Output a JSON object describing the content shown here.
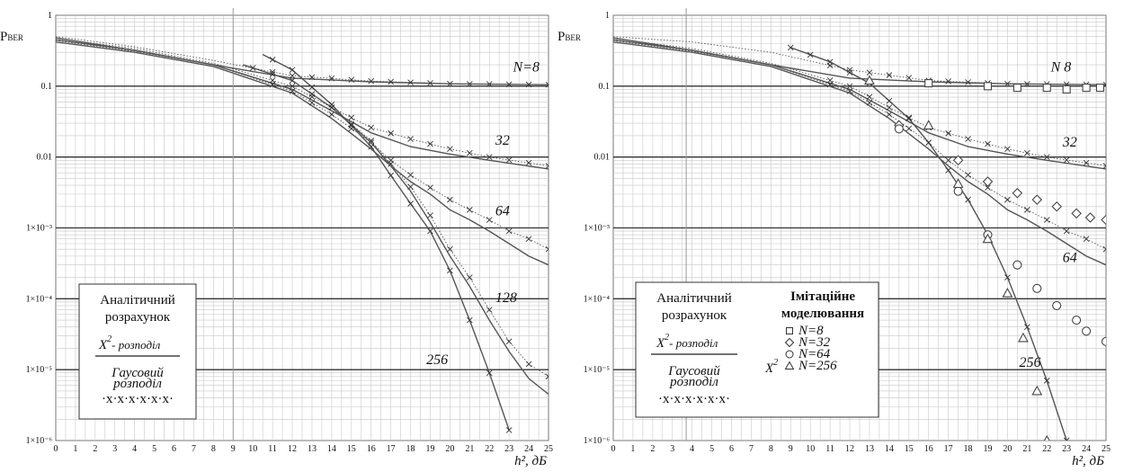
{
  "chart_data": [
    {
      "type": "line",
      "ylabel": "P",
      "ylabel_sub": "BER",
      "xlabel": "h², дБ",
      "xlim": [
        0,
        25
      ],
      "ylim": [
        1e-06,
        1
      ],
      "yscale": "log",
      "grid": true,
      "x_ticks": [
        "0",
        "1",
        "2",
        "3",
        "4",
        "5",
        "6",
        "7",
        "8",
        "9",
        "10",
        "11",
        "12",
        "13",
        "14",
        "15",
        "16",
        "17",
        "18",
        "19",
        "20",
        "21",
        "22",
        "23",
        "24",
        "25"
      ],
      "y_ticks": [
        "1",
        "0.1",
        "0.01",
        "1×10⁻³",
        "1×10⁻⁴",
        "1×10⁻⁵",
        "1×10⁻⁶"
      ],
      "series": [
        {
          "name": "N=8",
          "label": "N=8",
          "x": [
            0,
            4,
            8,
            12,
            16,
            20,
            25
          ],
          "chi2": [
            0.48,
            0.32,
            0.2,
            0.13,
            0.115,
            0.108,
            0.105
          ],
          "gauss": [
            0.5,
            0.36,
            0.23,
            0.14,
            0.118,
            0.108,
            0.105
          ]
        },
        {
          "name": "N=32",
          "label": "32",
          "x": [
            0,
            4,
            8,
            12,
            14,
            16,
            18,
            20,
            22,
            25
          ],
          "chi2": [
            0.45,
            0.32,
            0.2,
            0.09,
            0.045,
            0.022,
            0.014,
            0.011,
            0.009,
            0.0068
          ],
          "gauss": [
            0.47,
            0.34,
            0.21,
            0.1,
            0.05,
            0.026,
            0.018,
            0.013,
            0.01,
            0.0075
          ]
        },
        {
          "name": "N=64",
          "label": "64",
          "x": [
            0,
            4,
            8,
            12,
            14,
            16,
            17,
            18,
            19,
            20,
            21,
            22,
            23,
            24,
            25
          ],
          "chi2": [
            0.42,
            0.3,
            0.19,
            0.08,
            0.035,
            0.013,
            0.0075,
            0.0045,
            0.003,
            0.0018,
            0.0013,
            0.0009,
            0.0006,
            0.0004,
            0.0003
          ],
          "gauss": [
            0.44,
            0.31,
            0.2,
            0.085,
            0.04,
            0.016,
            0.009,
            0.0056,
            0.0037,
            0.0025,
            0.0018,
            0.0013,
            0.0009,
            0.0007,
            0.0005
          ]
        },
        {
          "name": "N=128",
          "label": "128",
          "x": [
            9.5,
            12,
            14,
            16,
            17,
            18,
            19,
            20,
            21,
            22,
            23,
            24,
            25
          ],
          "chi2": [
            0.2,
            0.12,
            0.05,
            0.016,
            0.0075,
            0.0033,
            0.0012,
            0.0004,
            0.00015,
            5e-05,
            1.8e-05,
            7.5e-06,
            4.5e-06
          ],
          "gauss": [
            0.2,
            0.12,
            0.05,
            0.017,
            0.008,
            0.0038,
            0.0015,
            0.0005,
            0.0002,
            7e-05,
            2.5e-05,
            1.2e-05,
            8e-06
          ]
        },
        {
          "name": "N=256",
          "label": "256",
          "x": [
            10.5,
            12,
            14,
            16,
            17,
            18,
            19,
            20,
            21,
            22,
            23
          ],
          "chi2": [
            0.28,
            0.17,
            0.055,
            0.014,
            0.0055,
            0.0022,
            0.0009,
            0.00025,
            5e-05,
            9e-06,
            1.4e-06
          ],
          "gauss": [
            0.28,
            0.17,
            0.055,
            0.014,
            0.0055,
            0.0022,
            0.0009,
            0.00025,
            5e-05,
            9e-06,
            1.4e-06
          ]
        }
      ]
    },
    {
      "type": "line",
      "ylabel": "P",
      "ylabel_sub": "BER",
      "xlabel": "h², дБ",
      "xlim": [
        0,
        25
      ],
      "ylim": [
        1e-06,
        1
      ],
      "yscale": "log",
      "grid": true,
      "x_ticks": [
        "0",
        "1",
        "2",
        "3",
        "4",
        "5",
        "6",
        "7",
        "8",
        "9",
        "10",
        "11",
        "12",
        "13",
        "14",
        "15",
        "16",
        "17",
        "18",
        "19",
        "20",
        "21",
        "22",
        "23",
        "24",
        "25"
      ],
      "y_ticks": [
        "1",
        "0.1",
        "0.01",
        "1×10⁻³",
        "1×10⁻⁴",
        "1×10⁻⁵",
        "1×10⁻⁶"
      ],
      "series": [
        {
          "name": "N=8",
          "label": "N 8",
          "x": [
            0,
            4,
            8,
            12,
            16,
            20,
            25
          ],
          "chi2": [
            0.48,
            0.32,
            0.2,
            0.13,
            0.115,
            0.108,
            0.105
          ],
          "gauss": [
            0.5,
            0.42,
            0.3,
            0.17,
            0.12,
            0.108,
            0.105
          ]
        },
        {
          "name": "N=32",
          "label": "32",
          "x": [
            0,
            4,
            8,
            12,
            14,
            16,
            18,
            20,
            22,
            25
          ],
          "chi2": [
            0.45,
            0.32,
            0.2,
            0.09,
            0.045,
            0.022,
            0.014,
            0.011,
            0.009,
            0.0068
          ],
          "gauss": [
            0.47,
            0.34,
            0.21,
            0.1,
            0.05,
            0.026,
            0.018,
            0.013,
            0.01,
            0.0075
          ]
        },
        {
          "name": "N=64",
          "label": "64",
          "x": [
            0,
            4,
            8,
            12,
            14,
            16,
            17,
            18,
            19,
            20,
            21,
            22,
            23,
            24,
            25
          ],
          "chi2": [
            0.42,
            0.3,
            0.19,
            0.08,
            0.035,
            0.013,
            0.0075,
            0.0045,
            0.003,
            0.0018,
            0.0013,
            0.0009,
            0.0006,
            0.0004,
            0.0003
          ],
          "gauss": [
            0.44,
            0.31,
            0.2,
            0.085,
            0.04,
            0.016,
            0.009,
            0.0056,
            0.0037,
            0.0025,
            0.0018,
            0.0013,
            0.0009,
            0.0007,
            0.0005
          ]
        },
        {
          "name": "N=256",
          "label": "256",
          "x": [
            9,
            11,
            13,
            15,
            16,
            17,
            18,
            19,
            20,
            21,
            22,
            23
          ],
          "chi2": [
            0.35,
            0.22,
            0.11,
            0.035,
            0.016,
            0.0065,
            0.0025,
            0.0008,
            0.0002,
            4e-05,
            7e-06,
            1e-06
          ],
          "gauss": [
            0.35,
            0.22,
            0.11,
            0.035,
            0.016,
            0.0065,
            0.0025,
            0.0008,
            0.0002,
            4e-05,
            7e-06,
            1e-06
          ]
        }
      ],
      "markers": [
        {
          "name": "N=8",
          "shape": "square",
          "x": [
            16,
            19,
            20.5,
            22,
            23,
            24,
            24.7
          ],
          "y": [
            0.11,
            0.1,
            0.095,
            0.095,
            0.09,
            0.095,
            0.095
          ]
        },
        {
          "name": "N=32",
          "shape": "diamond",
          "x": [
            14.5,
            17.5,
            19,
            20.5,
            21.5,
            22.5,
            23.5,
            24.2,
            25
          ],
          "y": [
            0.028,
            0.009,
            0.0045,
            0.0031,
            0.0025,
            0.002,
            0.0016,
            0.0014,
            0.0013
          ]
        },
        {
          "name": "N=64",
          "shape": "circle",
          "x": [
            14.5,
            17.5,
            19,
            20.5,
            21.5,
            22.5,
            23.5,
            24,
            25
          ],
          "y": [
            0.025,
            0.0033,
            0.0008,
            0.0003,
            0.00014,
            8e-05,
            5e-05,
            3.5e-05,
            2.5e-05
          ]
        },
        {
          "name": "N=256",
          "shape": "triangle",
          "x": [
            13,
            16,
            17.5,
            19,
            20,
            20.8,
            21.5,
            22
          ],
          "y": [
            0.12,
            0.028,
            0.0042,
            0.0007,
            0.00012,
            2.8e-05,
            5e-06,
            1e-06
          ]
        }
      ]
    }
  ],
  "legend_left": {
    "title_line1": "Аналітичний",
    "title_line2": "розрахунок",
    "chi_symbol": "X",
    "chi_sup": "2",
    "chi_text": "- розподіл",
    "gauss_line1": "Гаусовий",
    "gauss_line2": "розподіл",
    "gauss_marks": "·x·x·x·x·x·x·"
  },
  "legend_right": {
    "left_title_line1": "Аналітичний",
    "left_title_line2": "розрахунок",
    "chi_symbol": "X",
    "chi_sup": "2",
    "chi_text": "- розподіл",
    "gauss_line1": "Гаусовий",
    "gauss_line2": "розподіл",
    "gauss_marks": "·x·x·x·x·x·x·",
    "sim_title_line1": "Імітаційне",
    "sim_title_line2": "моделювання",
    "sim_symbol": "X",
    "sim_sup": "2",
    "entries": [
      "N=8",
      "N=32",
      "N=64",
      "N=256"
    ]
  },
  "colors": {
    "curve": "#555555",
    "grid_major": "#333333",
    "grid_minor": "#c8c8c8",
    "marker": "#444444"
  }
}
